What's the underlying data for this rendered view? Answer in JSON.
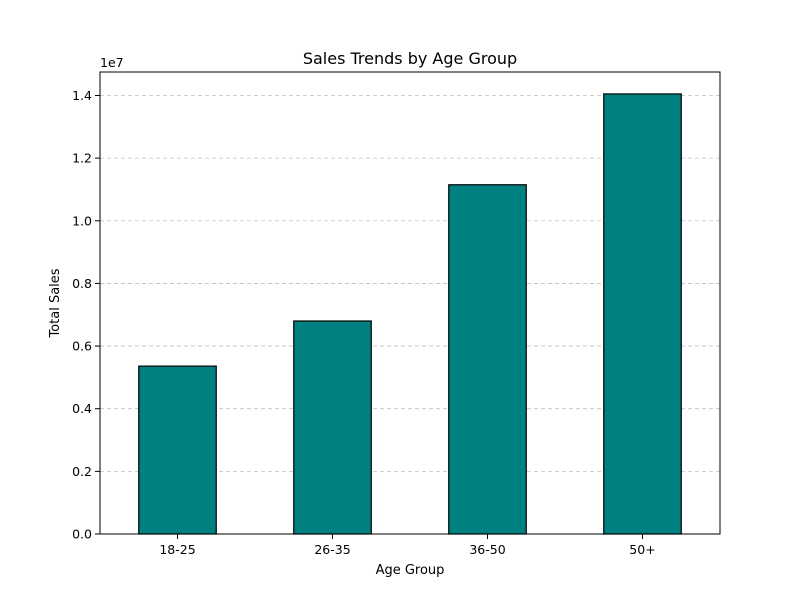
{
  "chart_data": {
    "type": "bar",
    "title": "Sales Trends by Age Group",
    "xlabel": "Age Group",
    "ylabel": "Total Sales",
    "categories": [
      "18-25",
      "26-35",
      "36-50",
      "50+"
    ],
    "values": [
      5360000,
      6800000,
      11150000,
      14050000
    ],
    "ylim": [
      0,
      14750000
    ],
    "yticks": [
      0,
      2000000,
      4000000,
      6000000,
      8000000,
      10000000,
      12000000,
      14000000
    ],
    "ytick_labels": [
      "0.0",
      "0.2",
      "0.4",
      "0.6",
      "0.8",
      "1.0",
      "1.2",
      "1.4"
    ],
    "y_offset_label": "1e7",
    "grid": "y",
    "bar_color": "#008080"
  }
}
